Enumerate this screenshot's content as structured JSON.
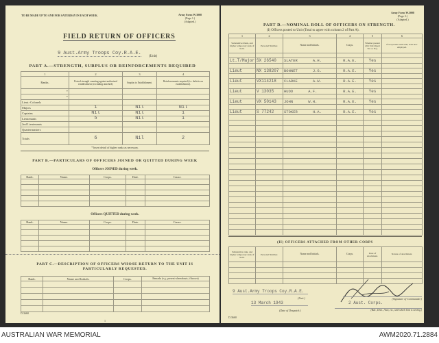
{
  "left_page": {
    "instruction": "TO BE MADE UP TO AND FOR SATURDAY IN EACH WEEK.",
    "form_ref": [
      "Army Form W.3008",
      "(Page 1.)",
      "(Adapted.)"
    ],
    "title": "FIELD RETURN OF OFFICERS",
    "unit_value": "9 Aust.Army Troops Coy.R.A.E.",
    "unit_label": "(Unit)",
    "part_a": {
      "heading": "PART A.—STRENGTH, SURPLUS OR REINFORCEMENTS REQUIRED",
      "col_numbers": [
        "1",
        "2",
        "3",
        "4"
      ],
      "headers": [
        "Ranks.",
        "Posted strength counting against authorized establishment (excluding attached).",
        "Surplus to Establishment.",
        "Reinforcements required (i.e. deficits on establishment)."
      ],
      "rows": [
        {
          "rank": "*",
          "posted": "",
          "surplus": "",
          "reinf": ""
        },
        {
          "rank": "*",
          "posted": "",
          "surplus": "",
          "reinf": ""
        },
        {
          "rank": "Lieut.-Colonels",
          "posted": "",
          "surplus": "",
          "reinf": ""
        },
        {
          "rank": "Majors",
          "posted": "1",
          "surplus": "Nil",
          "reinf": "Nil"
        },
        {
          "rank": "Captains",
          "posted": "Nil",
          "surplus": "Nil",
          "reinf": "1"
        },
        {
          "rank": "Lieutenants",
          "posted": "5",
          "surplus": "Nil",
          "reinf": "1"
        },
        {
          "rank": "2nd Lieutenants",
          "posted": "",
          "surplus": "",
          "reinf": ""
        },
        {
          "rank": "Quartermasters",
          "posted": "",
          "surplus": "",
          "reinf": ""
        }
      ],
      "totals": {
        "label": "Totals",
        "posted": "6",
        "surplus": "Nil",
        "reinf": "2"
      },
      "footnote": "* Insert detail of higher ranks as necessary."
    },
    "part_b": {
      "heading": "PART B.—PARTICULARS OF OFFICERS JOINED OR QUITTED DURING WEEK",
      "joined_heading": "Officers JOINED during week.",
      "quitted_heading": "Officers QUITTED during week.",
      "columns": [
        "Rank.",
        "Name.",
        "Corps.",
        "Date.",
        "Cause."
      ]
    },
    "part_c": {
      "heading": "PART C.—DESCRIPTION OF OFFICERS WHOSE RETURN TO THE UNIT IS PARTICULARLY REQUESTED.",
      "columns": [
        "Rank.",
        "Name and Initials.",
        "Corps.",
        "Remarks (e.g., present whereabouts, if known)"
      ]
    },
    "form_code": "D.3660",
    "page_number": "1"
  },
  "right_page": {
    "form_ref": [
      "Army Form W.3008",
      "(Page 2.)",
      "(Adapted.)"
    ],
    "part_d": {
      "heading": "PART D.—NOMINAL ROLL OF OFFICERS ON STRENGTH.",
      "subheading": "(I) Officers posted to Unit (Total to agree with column 2 of Part A).",
      "col_numbers": [
        "1",
        "2",
        "3",
        "4",
        "5",
        "6"
      ],
      "headers": [
        "Substantive Rank, and higher temporary rank, if held.",
        "Personal Number.",
        "Name and Initials.",
        "Corps.",
        "Whether present with Unit (Insert Yes or No).",
        "If not present with Unit, state how employed."
      ],
      "rows": [
        {
          "rank": "Lt.T/Major",
          "number": "SX 26540",
          "name": "SLATER",
          "initials": "A.H.",
          "corps": "R.A.E.",
          "present": "Yes",
          "employed": ""
        },
        {
          "rank": "Lieut",
          "number": "NX 138207",
          "name": "BONNET",
          "initials": "J.G.",
          "corps": "R.A.E.",
          "present": "Yes",
          "employed": ""
        },
        {
          "rank": "Lieut",
          "number": "VX114218",
          "name": "CLARKE",
          "initials": "A.W.",
          "corps": "R.A.E.",
          "present": "Yes",
          "employed": ""
        },
        {
          "rank": "Lieut",
          "number": "V 13035",
          "name": "HUDD",
          "initials": "A.F.",
          "corps": "R.A.E.",
          "present": "Yes",
          "employed": ""
        },
        {
          "rank": "Lieut",
          "number": "VX 50143",
          "name": "JOHN",
          "initials": "W.H.",
          "corps": "R.A.E.",
          "present": "Yes",
          "employed": ""
        },
        {
          "rank": "Lieut",
          "number": "S 77242",
          "name": "STOKER",
          "initials": "H.A.",
          "corps": "R.A.E.",
          "present": "Yes",
          "employed": ""
        }
      ]
    },
    "attached": {
      "heading": "(II) OFFICERS ATTACHED FROM OTHER CORPS",
      "headers": [
        "Substantive rank, and higher temporary rank, if held.",
        "Personal Number.",
        "Name and Initials.",
        "Corps.",
        "Date of attachment.",
        "Nature of attachment."
      ]
    },
    "footer": {
      "unit_value": "9 Aust.Army Troops Coy.R.A.E.",
      "unit_label": "(Unit.)",
      "date_value": "13 March 1943",
      "date_label": "(Date of Despatch.)",
      "signature_label": "(Signature of Commander.)",
      "formation_value": "2 Aust. Corps.",
      "formation_label": "(Bde., Divn., Area, etc., with which Unit is serving.)"
    },
    "form_code": "D.3660"
  },
  "caption": {
    "left": "AUSTRALIAN WAR MEMORIAL",
    "right": "AWM2020.71.2884"
  }
}
